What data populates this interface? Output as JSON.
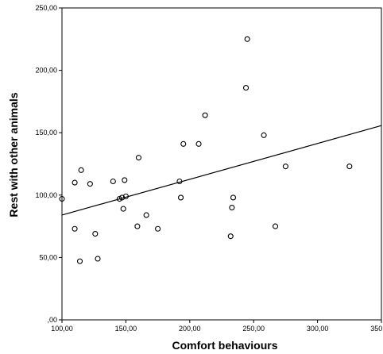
{
  "chart_data": {
    "type": "scatter",
    "title": "",
    "xlabel": "Comfort behaviours",
    "ylabel": "Rest with other animals",
    "xlim": [
      100,
      350
    ],
    "ylim": [
      0,
      250
    ],
    "x_ticks": [
      "100,00",
      "150,00",
      "200,00",
      "250,00",
      "300,00",
      "350,00"
    ],
    "y_ticks": [
      ",00",
      "50,00",
      "100,00",
      "150,00",
      "200,00",
      "250,00"
    ],
    "grid": false,
    "legend": "none",
    "series": [
      {
        "points": [
          [
            100,
            97
          ],
          [
            110,
            73
          ],
          [
            110,
            110
          ],
          [
            114,
            47
          ],
          [
            115,
            120
          ],
          [
            122,
            109
          ],
          [
            126,
            69
          ],
          [
            128,
            49
          ],
          [
            140,
            111
          ],
          [
            145,
            97
          ],
          [
            147,
            98
          ],
          [
            148,
            89
          ],
          [
            149,
            112
          ],
          [
            150,
            99
          ],
          [
            159,
            75
          ],
          [
            160,
            130
          ],
          [
            166,
            84
          ],
          [
            175,
            73
          ],
          [
            192,
            111
          ],
          [
            193,
            98
          ],
          [
            195,
            141
          ],
          [
            207,
            141
          ],
          [
            212,
            164
          ],
          [
            232,
            67
          ],
          [
            233,
            90
          ],
          [
            234,
            98
          ],
          [
            244,
            186
          ],
          [
            245,
            225
          ],
          [
            258,
            148
          ],
          [
            267,
            75
          ],
          [
            275,
            123
          ],
          [
            325,
            123
          ]
        ]
      }
    ],
    "fit_line": {
      "x": [
        100,
        358
      ],
      "y": [
        84,
        158
      ]
    },
    "colors": {
      "point_stroke": "#000000",
      "line": "#000000",
      "axis": "#000000",
      "plot_background": "#ffffff"
    }
  }
}
